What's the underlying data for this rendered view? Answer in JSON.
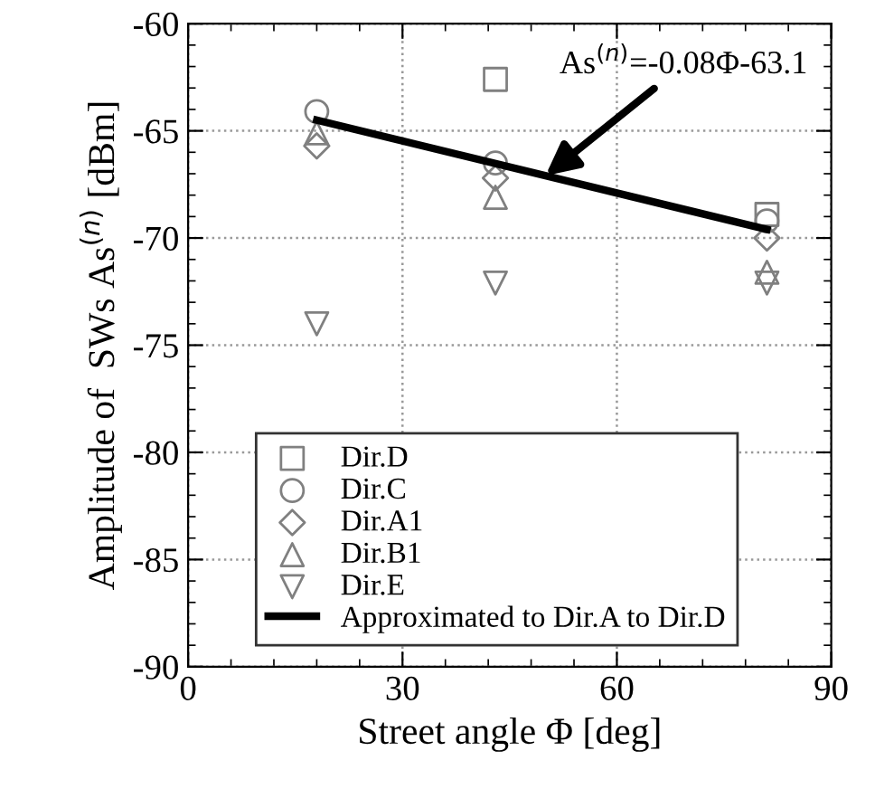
{
  "chart_data": {
    "type": "scatter",
    "xlabel": "Street angle Φ [deg]",
    "ylabel": "Amplitude of  SWs As$^{(n)}$ [dBm]",
    "xlim": [
      0,
      90
    ],
    "xticks": [
      0,
      30,
      60,
      90
    ],
    "ylim": [
      -90,
      -60
    ],
    "yticks": [
      -90,
      -85,
      -80,
      -75,
      -70,
      -65,
      -60
    ],
    "grid": true,
    "legend": "bottom",
    "series": [
      {
        "name": "Dir.D",
        "color": "#808080",
        "marker": "square",
        "x": [
          43,
          81
        ],
        "values": [
          -62.6,
          -68.9
        ]
      },
      {
        "name": "Dir.C",
        "color": "#808080",
        "marker": "circle",
        "x": [
          18,
          43,
          81
        ],
        "values": [
          -64.1,
          -66.5,
          -69.2
        ]
      },
      {
        "name": "Dir.A1",
        "color": "#808080",
        "marker": "diamond",
        "x": [
          18,
          43,
          81
        ],
        "values": [
          -65.7,
          -67.2,
          -70.0
        ]
      },
      {
        "name": "Dir.B1",
        "color": "#808080",
        "marker": "triangle",
        "x": [
          18,
          43,
          81
        ],
        "values": [
          -65.1,
          -68.1,
          -71.6
        ]
      },
      {
        "name": "Dir.E",
        "color": "#808080",
        "marker": "triangle_down",
        "x": [
          18,
          43,
          81
        ],
        "values": [
          -74.0,
          -72.1,
          -72.1
        ]
      },
      {
        "name": "Approximated to Dir.A to Dir.D",
        "type": "line",
        "color": "#000000",
        "marker": "none",
        "x": [
          18,
          81
        ],
        "values": [
          -64.5,
          -69.6
        ]
      }
    ],
    "annotations": [
      {
        "text": "As$^{(n)}$=-0.08Φ-63.1",
        "x": 50,
        "y": -67.1
      }
    ]
  }
}
